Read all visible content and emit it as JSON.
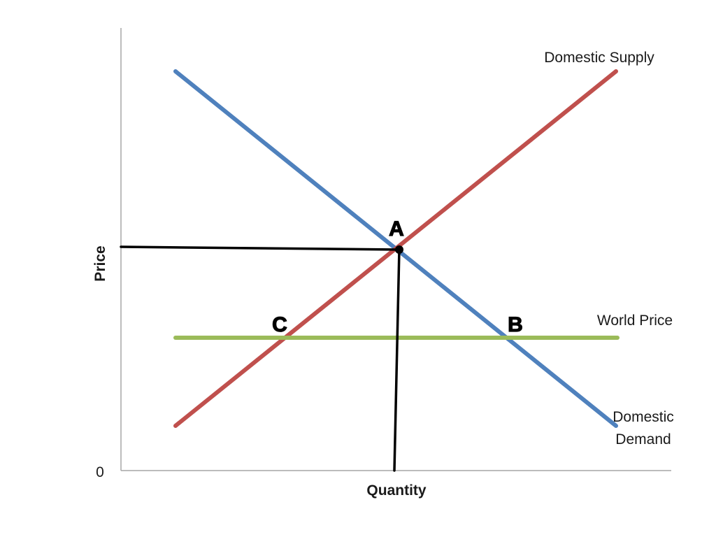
{
  "diagram": {
    "x_axis_label": "Quantity",
    "y_axis_label": "Price",
    "origin_label": "0",
    "curves": {
      "supply_label": "Domestic Supply",
      "demand_label_line1": "Domestic",
      "demand_label_line2": "Demand",
      "world_price_label": "World Price"
    },
    "points": {
      "a": "A",
      "b": "B",
      "c": "C"
    },
    "colors": {
      "supply": "#c0504d",
      "demand": "#4f81bd",
      "world_price": "#9bbb59",
      "guides": "#000000",
      "axes": "#a6a6a6"
    }
  }
}
